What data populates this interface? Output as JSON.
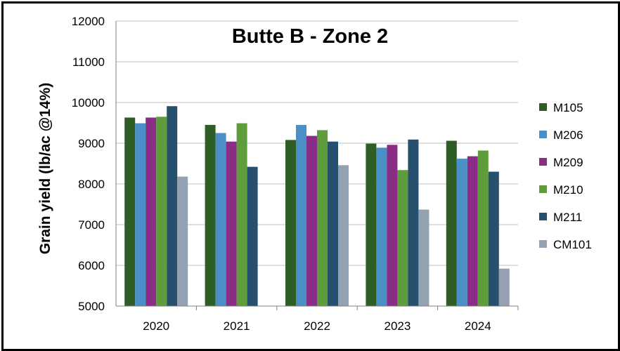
{
  "chart_data": {
    "type": "bar",
    "title": "Butte B - Zone 2",
    "xlabel": "",
    "ylabel": "Grain yield (lb/ac @14%)",
    "ylim": [
      5000,
      12000
    ],
    "yticks": [
      5000,
      6000,
      7000,
      8000,
      9000,
      10000,
      11000,
      12000
    ],
    "grid": true,
    "legend_position": "right",
    "categories": [
      "2020",
      "2021",
      "2022",
      "2023",
      "2024"
    ],
    "series": [
      {
        "name": "M105",
        "color": "#2e5e26",
        "values": [
          9630,
          9450,
          9080,
          8990,
          9060
        ]
      },
      {
        "name": "M206",
        "color": "#4a8fc5",
        "values": [
          9490,
          9250,
          9450,
          8890,
          8620
        ]
      },
      {
        "name": "M209",
        "color": "#8a2d86",
        "values": [
          9630,
          9040,
          9180,
          8960,
          8680
        ]
      },
      {
        "name": "M210",
        "color": "#5f9c3b",
        "values": [
          9650,
          9490,
          9320,
          8340,
          8820
        ]
      },
      {
        "name": "M211",
        "color": "#27506f",
        "values": [
          9910,
          8420,
          9040,
          9090,
          8300
        ]
      },
      {
        "name": "CM101",
        "color": "#93a1b2",
        "values": [
          8180,
          null,
          8460,
          7370,
          5920
        ]
      }
    ]
  }
}
